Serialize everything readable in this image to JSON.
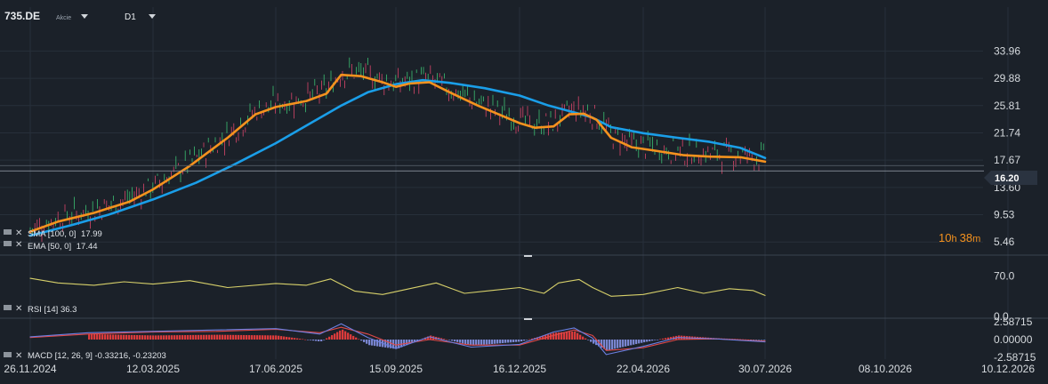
{
  "header": {
    "symbol": "735.DE",
    "instrument_type": "Akcie",
    "timeframe": "D1"
  },
  "countdown": {
    "hours": "10",
    "h_unit": "h",
    "minutes": "38",
    "m_unit": "m"
  },
  "colors": {
    "background": "#1b2129",
    "grid": "#27303a",
    "sma": "#1a9ee8",
    "ema": "#f5921e",
    "rsi": "#d7d06a",
    "macd_line": "#6b7fe0",
    "signal_line": "#e04848",
    "hist_pos": "#e23c3c",
    "hist_neg": "#7e8ad8",
    "candle_up": "#3cbf72",
    "candle_down": "#d9456a",
    "price_badge": "#2a3340"
  },
  "chart_data": [
    {
      "type": "line",
      "panel": "price",
      "ylim": [
        3.5,
        40.5
      ],
      "y_ticks": [
        "33.96",
        "29.88",
        "25.81",
        "21.74",
        "17.67",
        "13.60",
        "9.53",
        "5.46"
      ],
      "y_tick_values": [
        33.96,
        29.88,
        25.81,
        21.74,
        17.67,
        13.6,
        9.53,
        5.46
      ],
      "x_ticks": [
        "26.11.2024",
        "12.03.2025",
        "17.06.2025",
        "15.09.2025",
        "16.12.2025",
        "22.04.2026",
        "30.07.2026",
        "08.10.2026",
        "10.12.2026"
      ],
      "current_price": "16.20",
      "current_price_value": 16.2,
      "series": [
        {
          "name": "SMA [100, 0]",
          "last": "17.99",
          "x": [
            "2024-11-26",
            "2025-01-01",
            "2025-02-01",
            "2025-03-12",
            "2025-04-15",
            "2025-05-15",
            "2025-06-17",
            "2025-07-15",
            "2025-08-05",
            "2025-08-25",
            "2025-09-15",
            "2025-10-05",
            "2025-10-25",
            "2025-11-20",
            "2025-12-16",
            "2026-01-15",
            "2026-02-15",
            "2026-03-01",
            "2026-03-20",
            "2026-04-22",
            "2026-05-20",
            "2026-06-15",
            "2026-07-10",
            "2026-07-30"
          ],
          "y": [
            6.4,
            8.0,
            9.5,
            11.8,
            14.3,
            17.0,
            20.2,
            23.4,
            25.8,
            27.8,
            29.0,
            29.6,
            29.2,
            28.4,
            27.3,
            25.8,
            24.6,
            24.0,
            22.6,
            21.7,
            21.0,
            20.4,
            19.5,
            18.0
          ]
        },
        {
          "name": "EMA [50, 0]",
          "last": "17.44",
          "x": [
            "2024-11-26",
            "2024-12-20",
            "2025-01-20",
            "2025-02-20",
            "2025-03-12",
            "2025-04-10",
            "2025-05-10",
            "2025-06-01",
            "2025-06-17",
            "2025-07-10",
            "2025-07-25",
            "2025-08-05",
            "2025-08-20",
            "2025-09-05",
            "2025-09-15",
            "2025-09-25",
            "2025-10-10",
            "2025-10-25",
            "2025-11-15",
            "2025-12-16",
            "2026-01-01",
            "2026-01-20",
            "2026-02-05",
            "2026-02-20",
            "2026-03-05",
            "2026-03-20",
            "2026-04-10",
            "2026-05-01",
            "2026-05-25",
            "2026-06-15",
            "2026-07-10",
            "2026-07-30"
          ],
          "y": [
            7.0,
            8.5,
            9.8,
            11.5,
            13.3,
            16.8,
            21.0,
            24.5,
            25.6,
            26.5,
            27.6,
            30.4,
            30.2,
            29.3,
            28.6,
            29.1,
            29.3,
            27.8,
            25.8,
            23.2,
            22.5,
            22.7,
            24.5,
            24.6,
            23.7,
            21.0,
            19.6,
            19.1,
            18.4,
            18.2,
            18.1,
            17.44
          ]
        }
      ]
    },
    {
      "type": "line",
      "panel": "rsi",
      "title": "RSI [14] 36.3",
      "ylim": [
        0,
        100
      ],
      "y_ticks": [
        "70.0",
        "0.0"
      ],
      "y_tick_values": [
        70,
        0
      ],
      "series": [
        {
          "name": "RSI [14]",
          "last": "36.3",
          "x": [
            "2024-11-26",
            "2024-12-20",
            "2025-01-20",
            "2025-02-15",
            "2025-03-12",
            "2025-04-10",
            "2025-05-10",
            "2025-06-17",
            "2025-07-10",
            "2025-07-28",
            "2025-08-15",
            "2025-09-05",
            "2025-09-25",
            "2025-10-15",
            "2025-11-05",
            "2025-11-25",
            "2025-12-16",
            "2026-01-10",
            "2026-01-25",
            "2026-02-15",
            "2026-03-01",
            "2026-03-20",
            "2026-04-22",
            "2026-05-20",
            "2026-06-10",
            "2026-07-01",
            "2026-07-20",
            "2026-07-30"
          ],
          "y": [
            66,
            58,
            54,
            60,
            56,
            62,
            50,
            57,
            54,
            65,
            44,
            38,
            48,
            58,
            40,
            45,
            50,
            40,
            58,
            64,
            50,
            35,
            38,
            50,
            40,
            48,
            45,
            36.3
          ]
        }
      ]
    },
    {
      "type": "bar",
      "panel": "macd",
      "title": "MACD [12, 26, 9] -0.33216, -0.23203",
      "ylim": [
        -2.6,
        2.6
      ],
      "y_ticks": [
        "2.58715",
        "0.00000",
        "-2.58715"
      ],
      "y_tick_values": [
        2.58715,
        0,
        -2.58715
      ],
      "series": [
        {
          "name": "MACD line",
          "last": "-0.33216",
          "x": [
            "2024-11-26",
            "2025-01-15",
            "2025-03-12",
            "2025-05-01",
            "2025-06-17",
            "2025-07-20",
            "2025-08-05",
            "2025-08-25",
            "2025-09-15",
            "2025-10-10",
            "2025-11-10",
            "2025-12-16",
            "2026-01-20",
            "2026-02-10",
            "2026-03-01",
            "2026-03-15",
            "2026-04-22",
            "2026-05-20",
            "2026-06-20",
            "2026-07-30"
          ],
          "y": [
            0.4,
            1.0,
            1.2,
            1.4,
            1.6,
            0.8,
            2.3,
            0.3,
            -1.3,
            0.4,
            -1.1,
            -0.7,
            1.1,
            1.7,
            0.2,
            -2.2,
            -1.0,
            0.3,
            0.1,
            -0.33216
          ]
        },
        {
          "name": "Signal line",
          "last": "-0.23203",
          "x": [
            "2024-11-26",
            "2025-01-15",
            "2025-03-12",
            "2025-05-01",
            "2025-06-17",
            "2025-07-20",
            "2025-08-05",
            "2025-08-25",
            "2025-09-15",
            "2025-10-10",
            "2025-11-10",
            "2025-12-16",
            "2026-01-20",
            "2026-02-10",
            "2026-03-01",
            "2026-03-15",
            "2026-04-22",
            "2026-05-20",
            "2026-06-20",
            "2026-07-30"
          ],
          "y": [
            0.3,
            0.8,
            1.1,
            1.2,
            1.5,
            1.0,
            1.8,
            0.8,
            -0.8,
            0.0,
            -0.8,
            -0.8,
            0.6,
            1.4,
            0.6,
            -1.6,
            -1.2,
            0.0,
            0.1,
            -0.23203
          ]
        },
        {
          "name": "Histogram",
          "x": [
            "2025-01-15",
            "2025-03-12",
            "2025-05-01",
            "2025-06-17",
            "2025-07-20",
            "2025-08-05",
            "2025-08-25",
            "2025-09-15",
            "2025-10-10",
            "2025-11-10",
            "2025-12-16",
            "2026-01-20",
            "2026-02-10",
            "2026-03-01",
            "2026-03-15",
            "2026-04-22",
            "2026-05-20",
            "2026-06-20",
            "2026-07-30"
          ],
          "y": [
            0.8,
            0.6,
            0.7,
            0.6,
            -0.3,
            1.5,
            -0.8,
            -1.4,
            0.6,
            -0.9,
            -0.3,
            1.0,
            1.2,
            -0.6,
            -1.6,
            -0.4,
            0.6,
            0.2,
            -0.1
          ]
        }
      ]
    }
  ]
}
